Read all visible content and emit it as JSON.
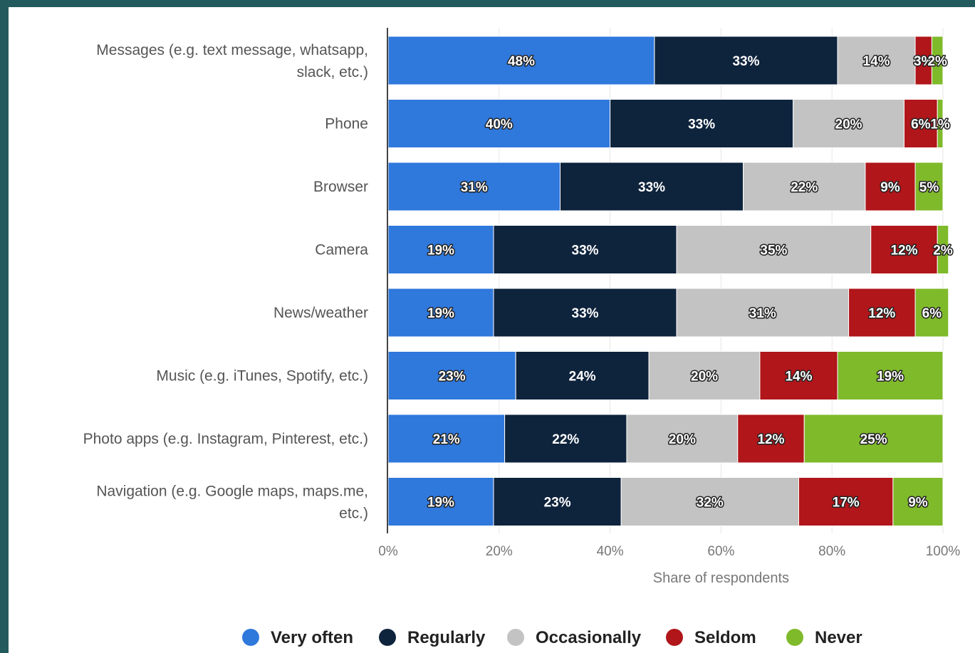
{
  "chart_data": {
    "type": "bar",
    "orientation": "horizontal",
    "stacked": true,
    "categories": [
      [
        "Messages (e.g. text message, whatsapp,",
        "slack, etc.)"
      ],
      [
        "Phone"
      ],
      [
        "Browser"
      ],
      [
        "Camera"
      ],
      [
        "News/weather"
      ],
      [
        "Music (e.g. iTunes, Spotify, etc.)"
      ],
      [
        "Photo apps (e.g. Instagram, Pinterest, etc.)"
      ],
      [
        "Navigation (e.g. Google maps, maps.me,",
        "etc.)"
      ]
    ],
    "series": [
      {
        "name": "Very often",
        "color": "#2f78dc",
        "values": [
          48,
          40,
          31,
          19,
          19,
          23,
          21,
          19
        ]
      },
      {
        "name": "Regularly",
        "color": "#0e233c",
        "values": [
          33,
          33,
          33,
          33,
          33,
          24,
          22,
          23
        ]
      },
      {
        "name": "Occasionally",
        "color": "#c3c3c3",
        "values": [
          14,
          20,
          22,
          35,
          31,
          20,
          20,
          32
        ]
      },
      {
        "name": "Seldom",
        "color": "#b0161a",
        "values": [
          3,
          6,
          9,
          12,
          12,
          14,
          12,
          17
        ]
      },
      {
        "name": "Never",
        "color": "#7fba2b",
        "values": [
          2,
          1,
          5,
          2,
          6,
          19,
          25,
          9
        ]
      }
    ],
    "data_labels": [
      [
        "48%",
        "33%",
        "14%",
        "3%",
        "2%"
      ],
      [
        "40%",
        "33%",
        "20%",
        "6%",
        "1%"
      ],
      [
        "31%",
        "33%",
        "22%",
        "9%",
        "5%"
      ],
      [
        "19%",
        "33%",
        "35%",
        "12%",
        "2%"
      ],
      [
        "19%",
        "33%",
        "31%",
        "12%",
        "6%"
      ],
      [
        "23%",
        "24%",
        "20%",
        "14%",
        "19%"
      ],
      [
        "21%",
        "22%",
        "20%",
        "12%",
        "25%"
      ],
      [
        "19%",
        "23%",
        "32%",
        "17%",
        "9%"
      ]
    ],
    "xlim": [
      0,
      100
    ],
    "xticks": [
      "0%",
      "20%",
      "40%",
      "60%",
      "80%",
      "100%"
    ],
    "xlabel": "Share of respondents",
    "ylabel": "",
    "title": "",
    "grid": true,
    "legend_position": "bottom"
  }
}
